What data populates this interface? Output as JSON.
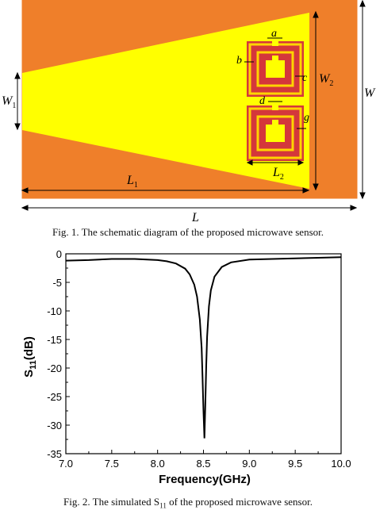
{
  "figure1": {
    "labels": {
      "a": "a",
      "b": "b",
      "c": "c",
      "d": "d",
      "g": "g",
      "W": "W",
      "W1_main": "W",
      "W1_sub": "1",
      "W2_main": "W",
      "W2_sub": "2",
      "L": "L",
      "L1_main": "L",
      "L1_sub": "1",
      "L2_main": "L",
      "L2_sub": "2"
    },
    "colors": {
      "substrate": "#ef7f2a",
      "patch": "#ffff00",
      "resonator": "#d4373b"
    },
    "caption": "Fig. 1. The schematic diagram of the proposed microwave sensor."
  },
  "figure2": {
    "caption": "Fig. 2. The simulated S",
    "caption_sub": "11",
    "caption_rest": " of the proposed microwave sensor."
  },
  "chart_data": {
    "type": "line",
    "xlabel": "Frequency(GHz)",
    "ylabel_main": "S",
    "ylabel_sub": "11",
    "ylabel_rest": "(dB)",
    "xlim": [
      7.0,
      10.0
    ],
    "ylim": [
      -35,
      0
    ],
    "xticks": [
      "7.0",
      "7.5",
      "8.0",
      "8.5",
      "9.0",
      "9.5",
      "10.0"
    ],
    "yticks": [
      "0",
      "-5",
      "-10",
      "-15",
      "-20",
      "-25",
      "-30",
      "-35"
    ],
    "grid": false,
    "series": [
      {
        "x": [
          7.0,
          7.25,
          7.5,
          7.75,
          8.0,
          8.1,
          8.2,
          8.3,
          8.35,
          8.4,
          8.43,
          8.46,
          8.48,
          8.49,
          8.5,
          8.51,
          8.52,
          8.53,
          8.54,
          8.56,
          8.58,
          8.62,
          8.7,
          8.8,
          9.0,
          9.25,
          9.5,
          9.75,
          10.0
        ],
        "y": [
          -1.2,
          -1.1,
          -0.9,
          -0.9,
          -1.1,
          -1.3,
          -1.7,
          -2.6,
          -3.6,
          -5.4,
          -7.5,
          -11.5,
          -16.5,
          -21.5,
          -27.5,
          -32.3,
          -26.5,
          -19.5,
          -14.5,
          -9.2,
          -6.4,
          -4.0,
          -2.3,
          -1.5,
          -1.0,
          -0.9,
          -0.8,
          -0.7,
          -0.6
        ]
      }
    ]
  }
}
